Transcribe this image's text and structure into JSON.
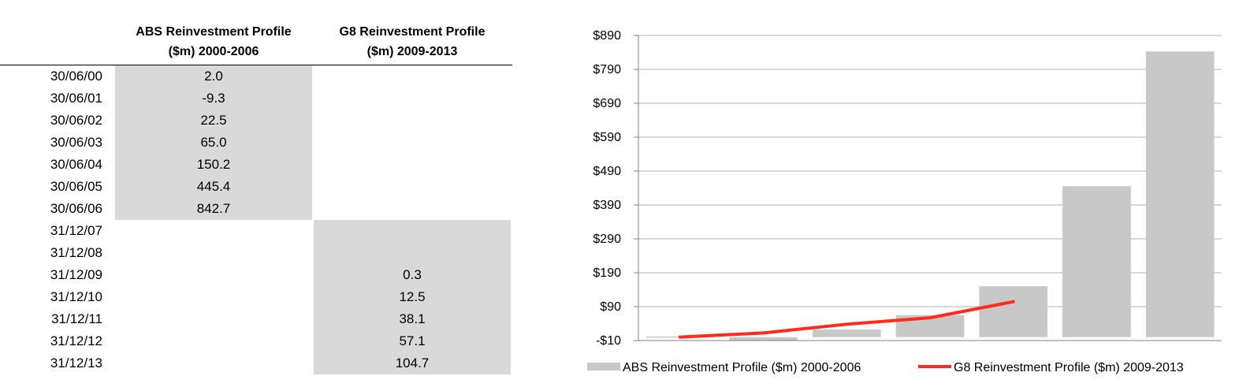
{
  "table": {
    "headers": {
      "abs_line1": "ABS Reinvestment Profile",
      "abs_line2": "($m) 2000-2006",
      "g8_line1": "G8 Reinvestment Profile",
      "g8_line2": "($m) 2009-2013"
    },
    "rows": [
      {
        "date": "30/06/00",
        "abs": "2.0",
        "g8": ""
      },
      {
        "date": "30/06/01",
        "abs": "-9.3",
        "g8": ""
      },
      {
        "date": "30/06/02",
        "abs": "22.5",
        "g8": ""
      },
      {
        "date": "30/06/03",
        "abs": "65.0",
        "g8": ""
      },
      {
        "date": "30/06/04",
        "abs": "150.2",
        "g8": ""
      },
      {
        "date": "30/06/05",
        "abs": "445.4",
        "g8": ""
      },
      {
        "date": "30/06/06",
        "abs": "842.7",
        "g8": ""
      },
      {
        "date": "31/12/07",
        "abs": "",
        "g8": ""
      },
      {
        "date": "31/12/08",
        "abs": "",
        "g8": ""
      },
      {
        "date": "31/12/09",
        "abs": "",
        "g8": "0.3"
      },
      {
        "date": "31/12/10",
        "abs": "",
        "g8": "12.5"
      },
      {
        "date": "31/12/11",
        "abs": "",
        "g8": "38.1"
      },
      {
        "date": "31/12/12",
        "abs": "",
        "g8": "57.1"
      },
      {
        "date": "31/12/13",
        "abs": "",
        "g8": "104.7"
      }
    ]
  },
  "chart_data": {
    "type": "bar",
    "title": "",
    "xlabel": "",
    "ylabel": "",
    "ylim": [
      -10,
      890
    ],
    "yticks": [
      "-$10",
      "$90",
      "$190",
      "$290",
      "$390",
      "$490",
      "$590",
      "$690",
      "$790",
      "$890"
    ],
    "ytick_values": [
      -10,
      90,
      190,
      290,
      390,
      490,
      590,
      690,
      790,
      890
    ],
    "grid": true,
    "legend_position": "bottom",
    "series": [
      {
        "name": "ABS Reinvestment Profile ($m) 2000-2006",
        "kind": "bar",
        "color": "#c8c8c8",
        "values": [
          2.0,
          -9.3,
          22.5,
          65.0,
          150.2,
          445.4,
          842.7
        ]
      },
      {
        "name": "G8 Reinvestment Profile ($m) 2009-2013",
        "kind": "line",
        "color": "#ff2a1a",
        "values": [
          0.3,
          12.5,
          38.1,
          57.1,
          104.7
        ]
      }
    ]
  }
}
